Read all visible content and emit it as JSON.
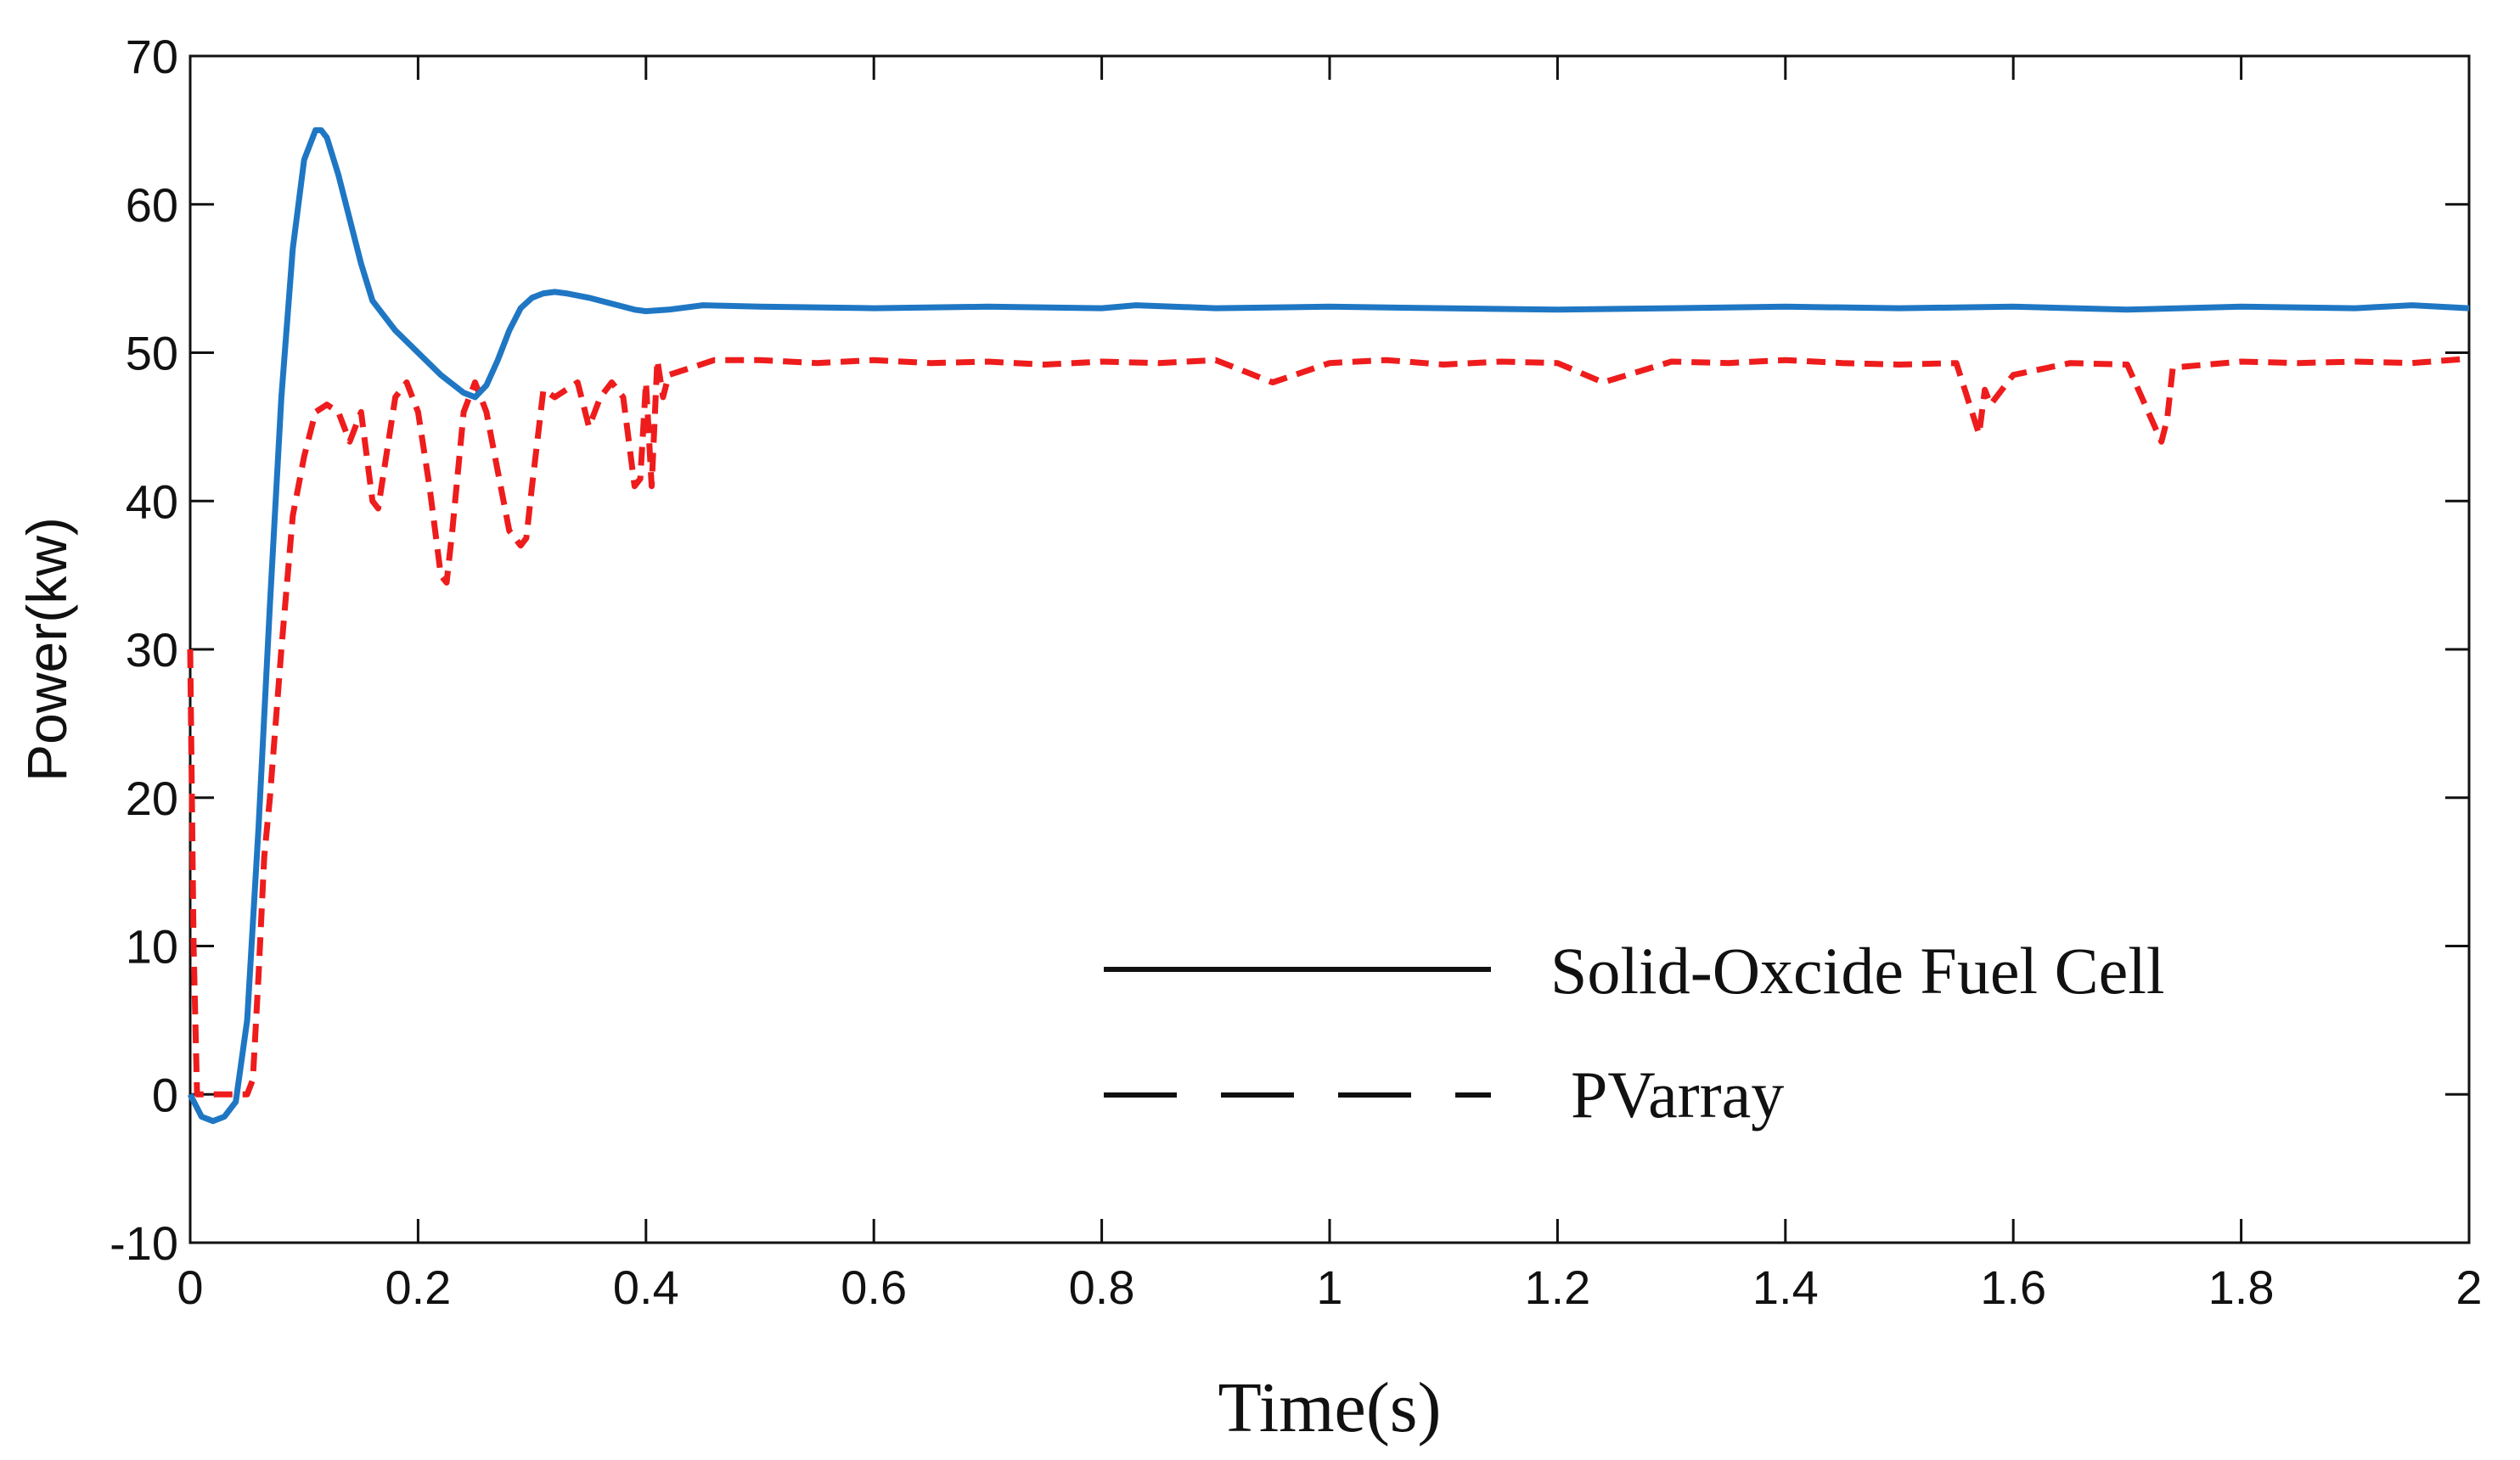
{
  "chart_data": {
    "type": "line",
    "title": "",
    "xlabel": "Time(s)",
    "ylabel": "Power(kw)",
    "xlim": [
      0,
      2
    ],
    "ylim": [
      -10,
      70
    ],
    "xticks": [
      0,
      0.2,
      0.4,
      0.6,
      0.8,
      1,
      1.2,
      1.4,
      1.6,
      1.8,
      2
    ],
    "xtick_labels": [
      "0",
      "0.2",
      "0.4",
      "0.6",
      "0.8",
      "1",
      "1.2",
      "1.4",
      "1.6",
      "1.8",
      "2"
    ],
    "yticks": [
      -10,
      0,
      10,
      20,
      30,
      40,
      50,
      60,
      70
    ],
    "ytick_labels": [
      "-10",
      "0",
      "10",
      "20",
      "30",
      "40",
      "50",
      "60",
      "70"
    ],
    "grid": false,
    "legend_position": "bottom-right",
    "series": [
      {
        "name": "Solid-Oxcide Fuel Cell",
        "legend_label": "Solid-Oxcide Fuel Cell",
        "color": "#1f77c4",
        "style": "solid",
        "x": [
          0,
          0.01,
          0.02,
          0.03,
          0.04,
          0.05,
          0.06,
          0.07,
          0.08,
          0.09,
          0.1,
          0.11,
          0.115,
          0.12,
          0.13,
          0.14,
          0.15,
          0.16,
          0.17,
          0.18,
          0.2,
          0.22,
          0.24,
          0.25,
          0.26,
          0.27,
          0.28,
          0.29,
          0.3,
          0.31,
          0.32,
          0.33,
          0.35,
          0.37,
          0.39,
          0.4,
          0.42,
          0.45,
          0.5,
          0.6,
          0.7,
          0.8,
          0.83,
          0.9,
          1.0,
          1.1,
          1.2,
          1.3,
          1.4,
          1.5,
          1.6,
          1.7,
          1.8,
          1.9,
          1.95,
          2.0
        ],
        "y": [
          0,
          -1.5,
          -1.8,
          -1.5,
          -0.5,
          5,
          18,
          33,
          47,
          57,
          63,
          65,
          65,
          64.5,
          62,
          59,
          56,
          53.5,
          52.5,
          51.5,
          50,
          48.5,
          47.3,
          47,
          47.8,
          49.5,
          51.5,
          53,
          53.7,
          54,
          54.1,
          54,
          53.7,
          53.3,
          52.9,
          52.8,
          52.9,
          53.2,
          53.1,
          53.0,
          53.1,
          53.0,
          53.2,
          53.0,
          53.1,
          53.0,
          52.9,
          53.0,
          53.1,
          53.0,
          53.1,
          52.9,
          53.1,
          53.0,
          53.2,
          53.0
        ]
      },
      {
        "name": "PVarray",
        "legend_label": "PVarray",
        "color": "#ee1c1c",
        "style": "dashed",
        "x": [
          0,
          0.003,
          0.006,
          0.01,
          0.02,
          0.03,
          0.04,
          0.05,
          0.055,
          0.06,
          0.065,
          0.07,
          0.08,
          0.09,
          0.1,
          0.11,
          0.12,
          0.13,
          0.14,
          0.15,
          0.16,
          0.165,
          0.17,
          0.18,
          0.19,
          0.2,
          0.21,
          0.22,
          0.225,
          0.23,
          0.24,
          0.25,
          0.26,
          0.27,
          0.28,
          0.29,
          0.295,
          0.3,
          0.31,
          0.32,
          0.33,
          0.34,
          0.35,
          0.36,
          0.37,
          0.38,
          0.39,
          0.395,
          0.4,
          0.405,
          0.41,
          0.415,
          0.42,
          0.44,
          0.46,
          0.5,
          0.55,
          0.6,
          0.65,
          0.7,
          0.75,
          0.8,
          0.85,
          0.9,
          0.95,
          1.0,
          1.05,
          1.1,
          1.15,
          1.2,
          1.24,
          1.3,
          1.35,
          1.4,
          1.45,
          1.5,
          1.55,
          1.57,
          1.575,
          1.58,
          1.6,
          1.65,
          1.7,
          1.73,
          1.735,
          1.74,
          1.8,
          1.85,
          1.9,
          1.95,
          2.0
        ],
        "y": [
          30,
          10,
          0,
          0,
          0,
          0,
          0,
          0,
          1,
          8,
          16,
          20,
          30,
          39,
          43,
          46,
          46.5,
          46,
          44,
          46,
          40,
          39.5,
          42,
          47,
          48,
          46,
          41,
          35,
          34.5,
          38,
          46,
          48,
          46,
          42,
          38,
          37,
          37.5,
          41,
          47.5,
          47,
          47.5,
          48,
          45,
          47,
          48,
          47,
          41,
          41.5,
          48,
          41,
          49.5,
          47,
          48.5,
          49,
          49.5,
          49.5,
          49.3,
          49.5,
          49.3,
          49.4,
          49.2,
          49.4,
          49.3,
          49.5,
          48,
          49.3,
          49.5,
          49.2,
          49.4,
          49.3,
          48,
          49.4,
          49.3,
          49.5,
          49.3,
          49.2,
          49.3,
          44.5,
          47.5,
          46.5,
          48.5,
          49.3,
          49.2,
          44,
          45.5,
          49,
          49.4,
          49.3,
          49.4,
          49.3,
          49.6
        ]
      }
    ]
  }
}
